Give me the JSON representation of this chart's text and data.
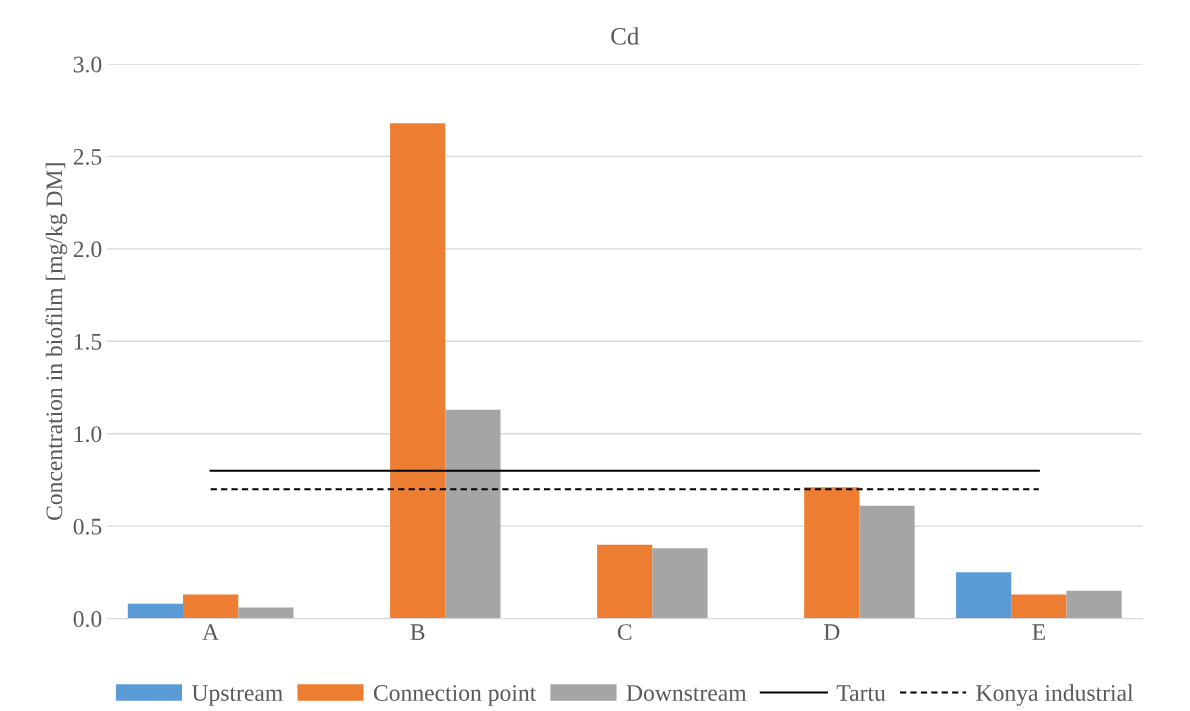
{
  "chart_data": {
    "type": "bar",
    "title": "Cd",
    "ylabel": "Concentration in biofilm [mg/kg DM]",
    "categories": [
      "A",
      "B",
      "C",
      "D",
      "E"
    ],
    "series": [
      {
        "name": "Upstream",
        "color": "#5b9bd5",
        "values": [
          0.08,
          null,
          null,
          null,
          0.25
        ]
      },
      {
        "name": "Connection point",
        "color": "#ed7d31",
        "values": [
          0.13,
          2.68,
          0.4,
          0.71,
          0.13
        ]
      },
      {
        "name": "Downstream",
        "color": "#a5a5a5",
        "values": [
          0.06,
          1.13,
          0.38,
          0.61,
          0.15
        ]
      },
      {
        "name": "Tartu",
        "type": "line",
        "color": "#000000",
        "line_style": "solid",
        "values": [
          0.8,
          0.8,
          0.8,
          0.8,
          0.8
        ]
      },
      {
        "name": "Konya industrial",
        "type": "line",
        "color": "#000000",
        "line_style": "dashed",
        "values": [
          0.7,
          0.7,
          0.7,
          0.7,
          0.7
        ]
      }
    ],
    "ylim": [
      0,
      3.0
    ],
    "yticks": [
      {
        "value": 0,
        "label": "0.0"
      },
      0.5,
      {
        "value": 1,
        "label": "1.0"
      },
      1.5,
      {
        "value": 2,
        "label": "2.0"
      },
      2.5,
      {
        "value": 3,
        "label": "3.0"
      }
    ],
    "grid": "y",
    "legend": "bottom"
  }
}
